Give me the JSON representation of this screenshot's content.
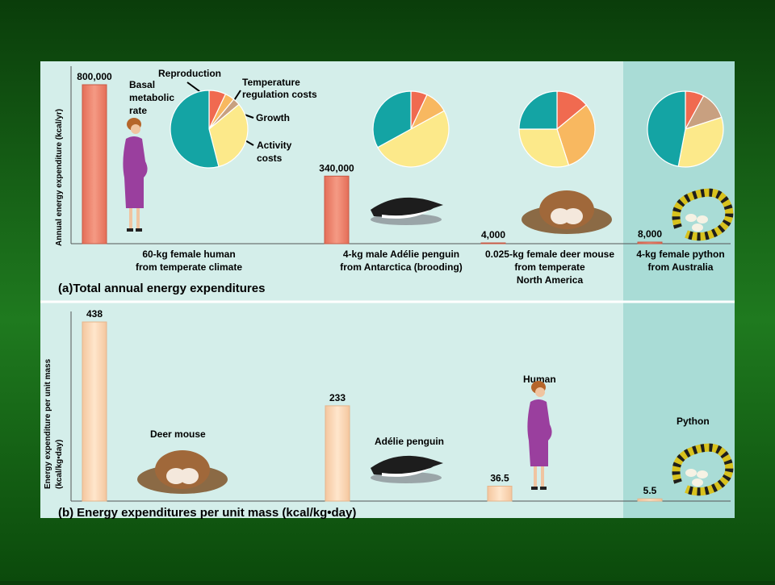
{
  "colors": {
    "background": "#1a6b1a",
    "panel": "#d4eeea",
    "python_panel": "#a9dcd6",
    "bar_a": "#f0907a",
    "bar_b": "#fcd9b8",
    "basal": "#14a4a4",
    "reproduction": "#f06a50",
    "temperature": "#f8b860",
    "growth": "#c8a080",
    "activity": "#fce98a"
  },
  "chart_data": [
    {
      "type": "bar",
      "panel_label": "(a)",
      "title": "Total annual energy expenditures",
      "ylabel": "Annual energy expenditure (kcal/yr)",
      "categories": [
        [
          "60-kg female human",
          "from temperate climate"
        ],
        [
          "4-kg male Adélie penguin",
          "from Antarctica (brooding)"
        ],
        [
          "0.025-kg female deer mouse",
          "from temperate",
          "North America"
        ],
        [
          "4-kg female python",
          "from Australia"
        ]
      ],
      "values": [
        800000,
        340000,
        4000,
        8000
      ],
      "value_labels": [
        "800,000",
        "340,000",
        "4,000",
        "8,000"
      ],
      "ylim": [
        0,
        800000
      ],
      "pies": [
        {
          "slices": [
            {
              "key": "reproduction",
              "value": 0.07
            },
            {
              "key": "temperature",
              "value": 0.04
            },
            {
              "key": "growth",
              "value": 0.03
            },
            {
              "key": "activity",
              "value": 0.32
            },
            {
              "key": "basal",
              "value": 0.54
            }
          ]
        },
        {
          "slices": [
            {
              "key": "reproduction",
              "value": 0.07
            },
            {
              "key": "temperature",
              "value": 0.1
            },
            {
              "key": "activity",
              "value": 0.5
            },
            {
              "key": "basal",
              "value": 0.33
            }
          ]
        },
        {
          "slices": [
            {
              "key": "reproduction",
              "value": 0.14
            },
            {
              "key": "temperature",
              "value": 0.31
            },
            {
              "key": "activity",
              "value": 0.3
            },
            {
              "key": "basal",
              "value": 0.25
            }
          ]
        },
        {
          "slices": [
            {
              "key": "reproduction",
              "value": 0.08
            },
            {
              "key": "growth",
              "value": 0.12
            },
            {
              "key": "activity",
              "value": 0.33
            },
            {
              "key": "basal",
              "value": 0.47
            }
          ]
        }
      ],
      "pie_labels": {
        "reproduction": "Reproduction",
        "temperature": [
          "Temperature",
          "regulation costs"
        ],
        "basal": [
          "Basal",
          "metabolic",
          "rate"
        ],
        "growth": "Growth",
        "activity": [
          "Activity",
          "costs"
        ]
      }
    },
    {
      "type": "bar",
      "panel_label": "(b)",
      "title": "Energy expenditures per unit mass (kcal/kg•day)",
      "ylabel": [
        "Energy expenditure per unit mass",
        "(kcal/kg•day)"
      ],
      "categories": [
        "Deer mouse",
        "Adélie penguin",
        "Human",
        "Python"
      ],
      "values": [
        438,
        233,
        36.5,
        5.5
      ],
      "value_labels": [
        "438",
        "233",
        "36.5",
        "5.5"
      ],
      "ylim": [
        0,
        438
      ]
    }
  ]
}
